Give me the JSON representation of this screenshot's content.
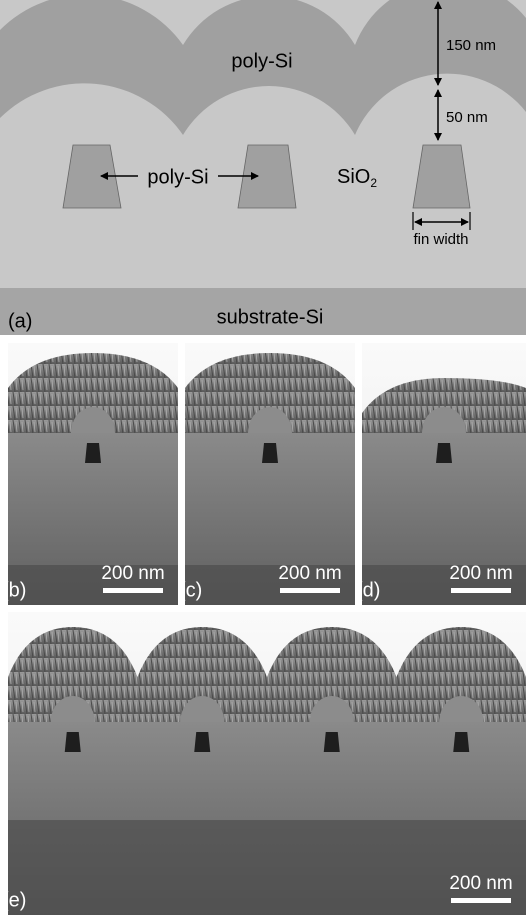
{
  "panel_a": {
    "label": "(a)",
    "top_layer": "poly-Si",
    "dim_top": "150 nm",
    "dim_oxide": "50 nm",
    "fin_label": "poly-Si",
    "oxide": "SiO",
    "oxide_sub": "2",
    "fin_width": "fin width",
    "substrate": "substrate-Si"
  },
  "panels": [
    {
      "label": "(b)",
      "scale_bar": "200 nm"
    },
    {
      "label": "(c)",
      "scale_bar": "200 nm"
    },
    {
      "label": "(d)",
      "scale_bar": "200 nm"
    },
    {
      "label": "(e)",
      "scale_bar": "200 nm"
    }
  ]
}
